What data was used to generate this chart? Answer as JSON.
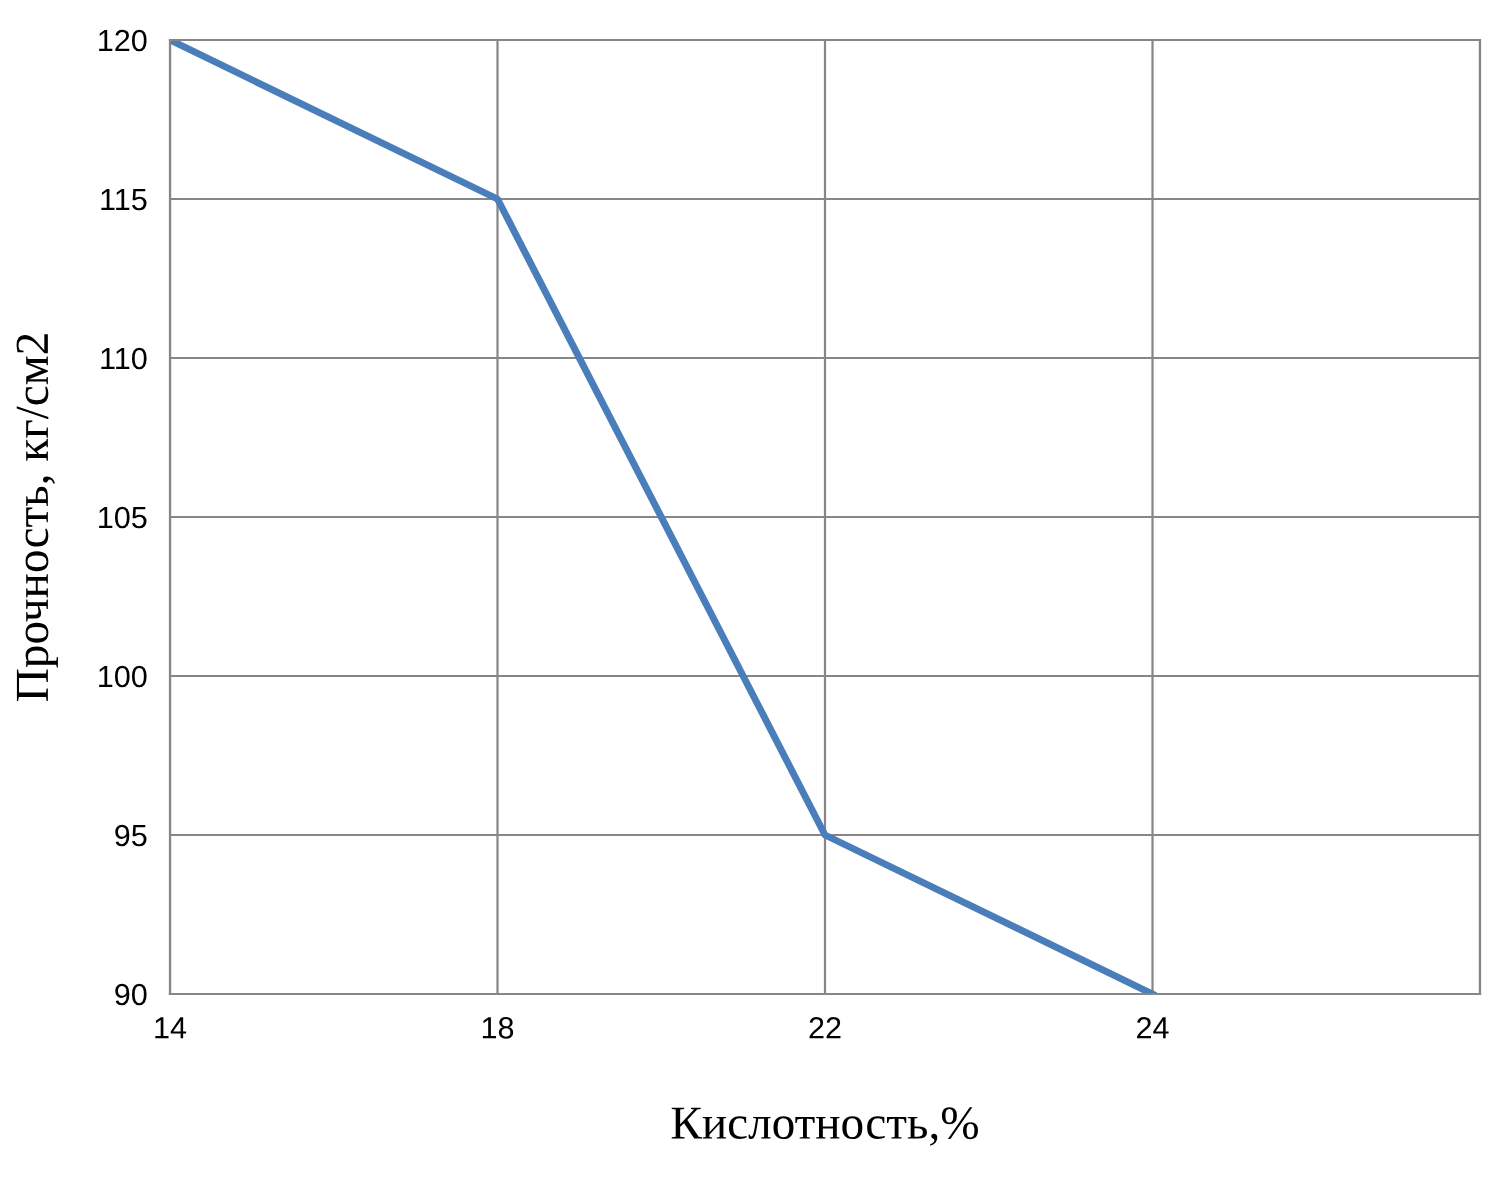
{
  "chart_data": {
    "type": "line",
    "xlabel": "Кислотность,%",
    "ylabel": "Прочность, кг/см2",
    "categories": [
      "14",
      "18",
      "22",
      "24",
      null
    ],
    "series": [
      {
        "color": "#4a7ebb",
        "values": [
          120,
          115,
          95,
          90,
          null
        ]
      }
    ],
    "ylim": [
      90,
      120
    ],
    "yticks": [
      90,
      95,
      100,
      105,
      110,
      115,
      120
    ],
    "grid": true,
    "legend": false,
    "marker": "none",
    "line_style": "solid"
  }
}
